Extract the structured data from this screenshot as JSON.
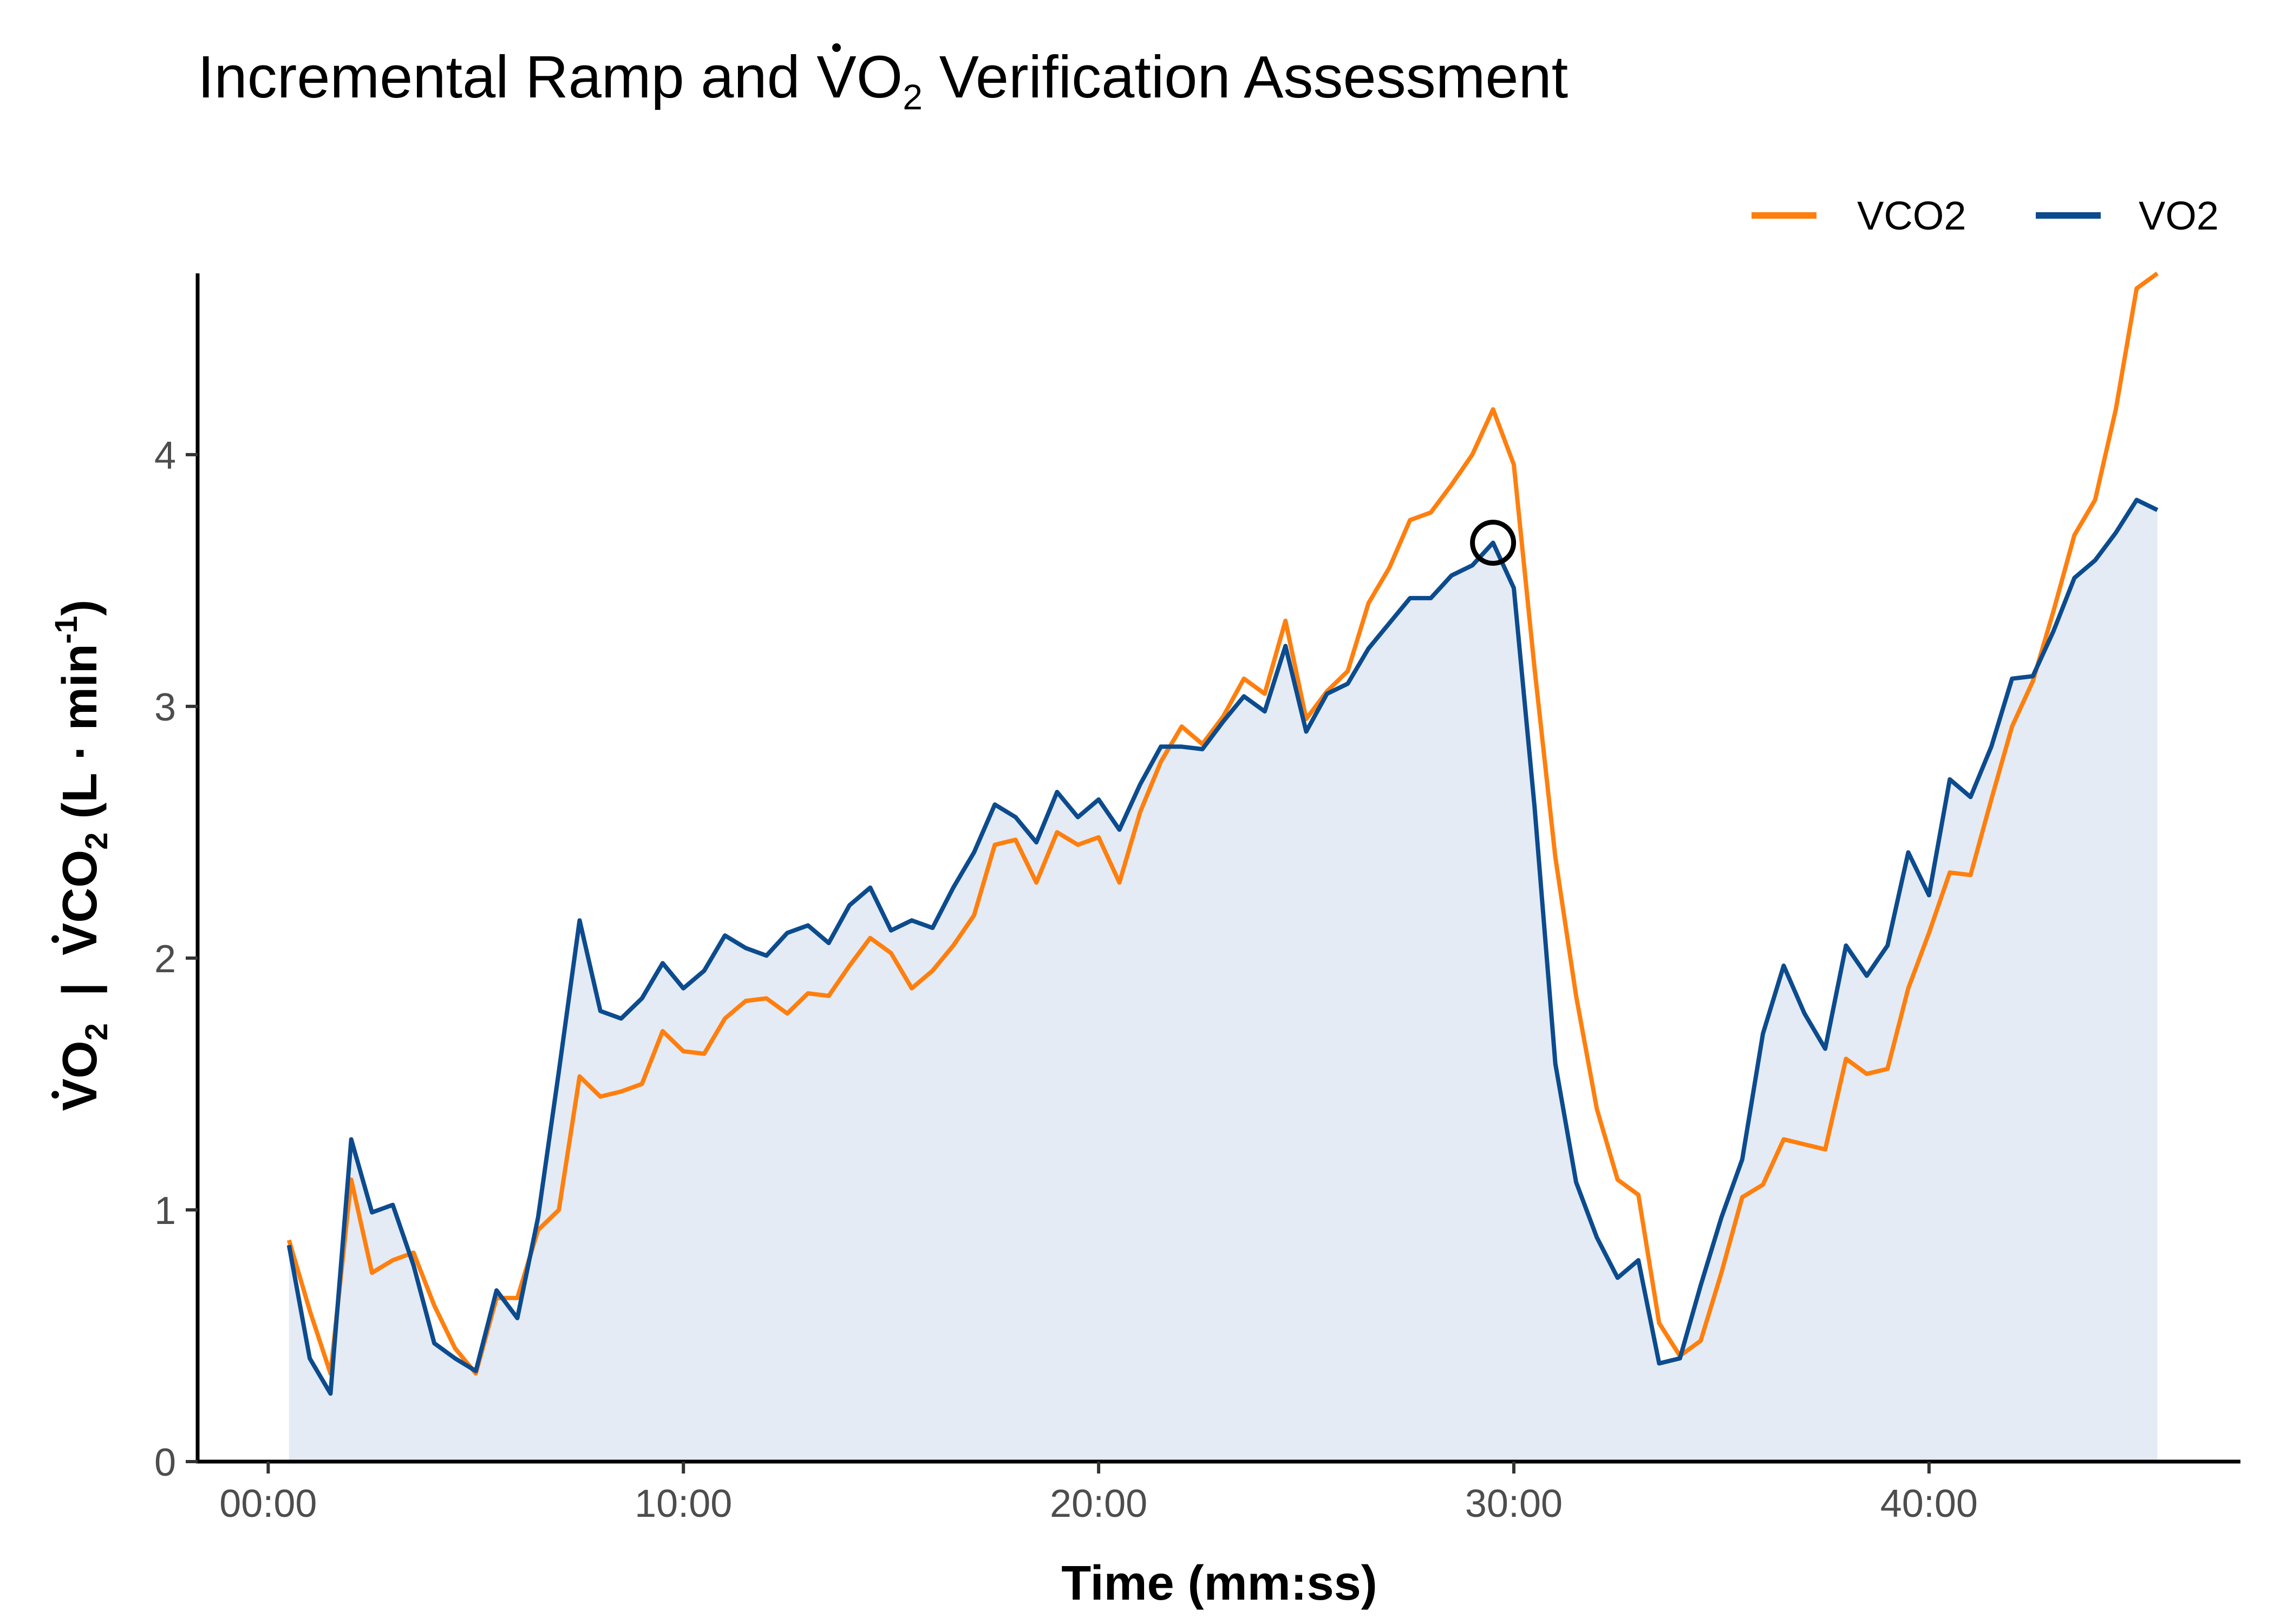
{
  "chart_data": {
    "type": "line",
    "title": {
      "before": "Incremental Ramp and ",
      "v": "V",
      "o": "O",
      "sub": "2",
      "after": " Verification Assessment"
    },
    "xlabel": "Time (mm:ss)",
    "ylabel": {
      "vo2_v": "V",
      "vo2_o": "O",
      "vo2_sub": "2",
      "sep": "  |  ",
      "vco2_v": "V",
      "vco2_co": "CO",
      "vco2_sub": "2",
      "units_pre": " (L · min",
      "units_sup": "-1",
      "units_post": ")"
    },
    "xlim": [
      -1.7,
      47.5
    ],
    "ylim": [
      0,
      4.72
    ],
    "x_ticks": [
      0,
      10,
      20,
      30,
      40
    ],
    "x_tick_labels": [
      "00:00",
      "10:00",
      "20:00",
      "30:00",
      "40:00"
    ],
    "y_ticks": [
      0,
      1,
      2,
      3,
      4
    ],
    "y_tick_labels": [
      "0",
      "1",
      "2",
      "3",
      "4"
    ],
    "grid": false,
    "legend_position": "top-right",
    "series": [
      {
        "name": "VCO2",
        "color": "#FF7F0E",
        "x": [
          0.5,
          1.0,
          1.5,
          2.0,
          2.5,
          3.0,
          3.5,
          4.0,
          4.5,
          5.0,
          5.5,
          6.0,
          6.5,
          7.0,
          7.5,
          8.0,
          8.5,
          9.0,
          9.5,
          10.0,
          10.5,
          11.0,
          11.5,
          12.0,
          12.5,
          13.0,
          13.5,
          14.0,
          14.5,
          15.0,
          15.5,
          16.0,
          16.5,
          17.0,
          17.5,
          18.0,
          18.5,
          19.0,
          19.5,
          20.0,
          20.5,
          21.0,
          21.5,
          22.0,
          22.5,
          23.0,
          23.5,
          24.0,
          24.5,
          25.0,
          25.5,
          26.0,
          26.5,
          27.0,
          27.5,
          28.0,
          28.5,
          29.0,
          29.5,
          30.0,
          30.5,
          31.0,
          31.5,
          32.0,
          32.5,
          33.0,
          33.5,
          34.0,
          34.5,
          35.0,
          35.5,
          36.0,
          36.5,
          37.0,
          37.5,
          38.0,
          38.5,
          39.0,
          39.5,
          40.0,
          40.5,
          41.0,
          41.5,
          42.0,
          42.5,
          43.0,
          43.5,
          44.0,
          44.5,
          45.0,
          45.5
        ],
        "y": [
          0.88,
          0.6,
          0.35,
          1.12,
          0.75,
          0.8,
          0.83,
          0.62,
          0.45,
          0.35,
          0.65,
          0.65,
          0.92,
          1.0,
          1.53,
          1.45,
          1.47,
          1.5,
          1.71,
          1.63,
          1.62,
          1.76,
          1.83,
          1.84,
          1.78,
          1.86,
          1.85,
          1.97,
          2.08,
          2.02,
          1.88,
          1.95,
          2.05,
          2.17,
          2.45,
          2.47,
          2.3,
          2.5,
          2.45,
          2.48,
          2.3,
          2.58,
          2.78,
          2.92,
          2.85,
          2.96,
          3.11,
          3.05,
          3.34,
          2.95,
          3.06,
          3.14,
          3.41,
          3.55,
          3.74,
          3.77,
          3.88,
          4.0,
          4.18,
          3.96,
          3.15,
          2.4,
          1.85,
          1.4,
          1.12,
          1.06,
          0.55,
          0.42,
          0.48,
          0.75,
          1.05,
          1.1,
          1.28,
          1.26,
          1.24,
          1.6,
          1.54,
          1.56,
          1.88,
          2.1,
          2.34,
          2.33,
          2.63,
          2.92,
          3.1,
          3.38,
          3.68,
          3.82,
          4.18,
          4.66,
          4.72
        ]
      },
      {
        "name": "VO2",
        "color": "#0C4B8E",
        "x": [
          0.5,
          1.0,
          1.5,
          2.0,
          2.5,
          3.0,
          3.5,
          4.0,
          4.5,
          5.0,
          5.5,
          6.0,
          6.5,
          7.0,
          7.5,
          8.0,
          8.5,
          9.0,
          9.5,
          10.0,
          10.5,
          11.0,
          11.5,
          12.0,
          12.5,
          13.0,
          13.5,
          14.0,
          14.5,
          15.0,
          15.5,
          16.0,
          16.5,
          17.0,
          17.5,
          18.0,
          18.5,
          19.0,
          19.5,
          20.0,
          20.5,
          21.0,
          21.5,
          22.0,
          22.5,
          23.0,
          23.5,
          24.0,
          24.5,
          25.0,
          25.5,
          26.0,
          26.5,
          27.0,
          27.5,
          28.0,
          28.5,
          29.0,
          29.5,
          30.0,
          30.5,
          31.0,
          31.5,
          32.0,
          32.5,
          33.0,
          33.5,
          34.0,
          34.5,
          35.0,
          35.5,
          36.0,
          36.5,
          37.0,
          37.5,
          38.0,
          38.5,
          39.0,
          39.5,
          40.0,
          40.5,
          41.0,
          41.5,
          42.0,
          42.5,
          43.0,
          43.5,
          44.0,
          44.5,
          45.0,
          45.5
        ],
        "y": [
          0.86,
          0.41,
          0.27,
          1.28,
          0.99,
          1.02,
          0.78,
          0.47,
          0.41,
          0.36,
          0.68,
          0.57,
          0.97,
          1.55,
          2.15,
          1.79,
          1.76,
          1.84,
          1.98,
          1.88,
          1.95,
          2.09,
          2.04,
          2.01,
          2.1,
          2.13,
          2.06,
          2.21,
          2.28,
          2.11,
          2.15,
          2.12,
          2.28,
          2.42,
          2.61,
          2.56,
          2.46,
          2.66,
          2.56,
          2.63,
          2.51,
          2.69,
          2.84,
          2.84,
          2.83,
          2.94,
          3.04,
          2.98,
          3.24,
          2.9,
          3.05,
          3.09,
          3.23,
          3.33,
          3.43,
          3.43,
          3.52,
          3.56,
          3.65,
          3.47,
          2.6,
          1.58,
          1.11,
          0.89,
          0.73,
          0.8,
          0.39,
          0.41,
          0.7,
          0.97,
          1.2,
          1.7,
          1.97,
          1.78,
          1.64,
          2.05,
          1.93,
          2.05,
          2.42,
          2.25,
          2.71,
          2.64,
          2.84,
          3.11,
          3.12,
          3.3,
          3.51,
          3.58,
          3.69,
          3.82,
          3.78
        ]
      }
    ],
    "marker": {
      "x": 29.5,
      "y": 3.65,
      "shape": "open-circle"
    }
  }
}
